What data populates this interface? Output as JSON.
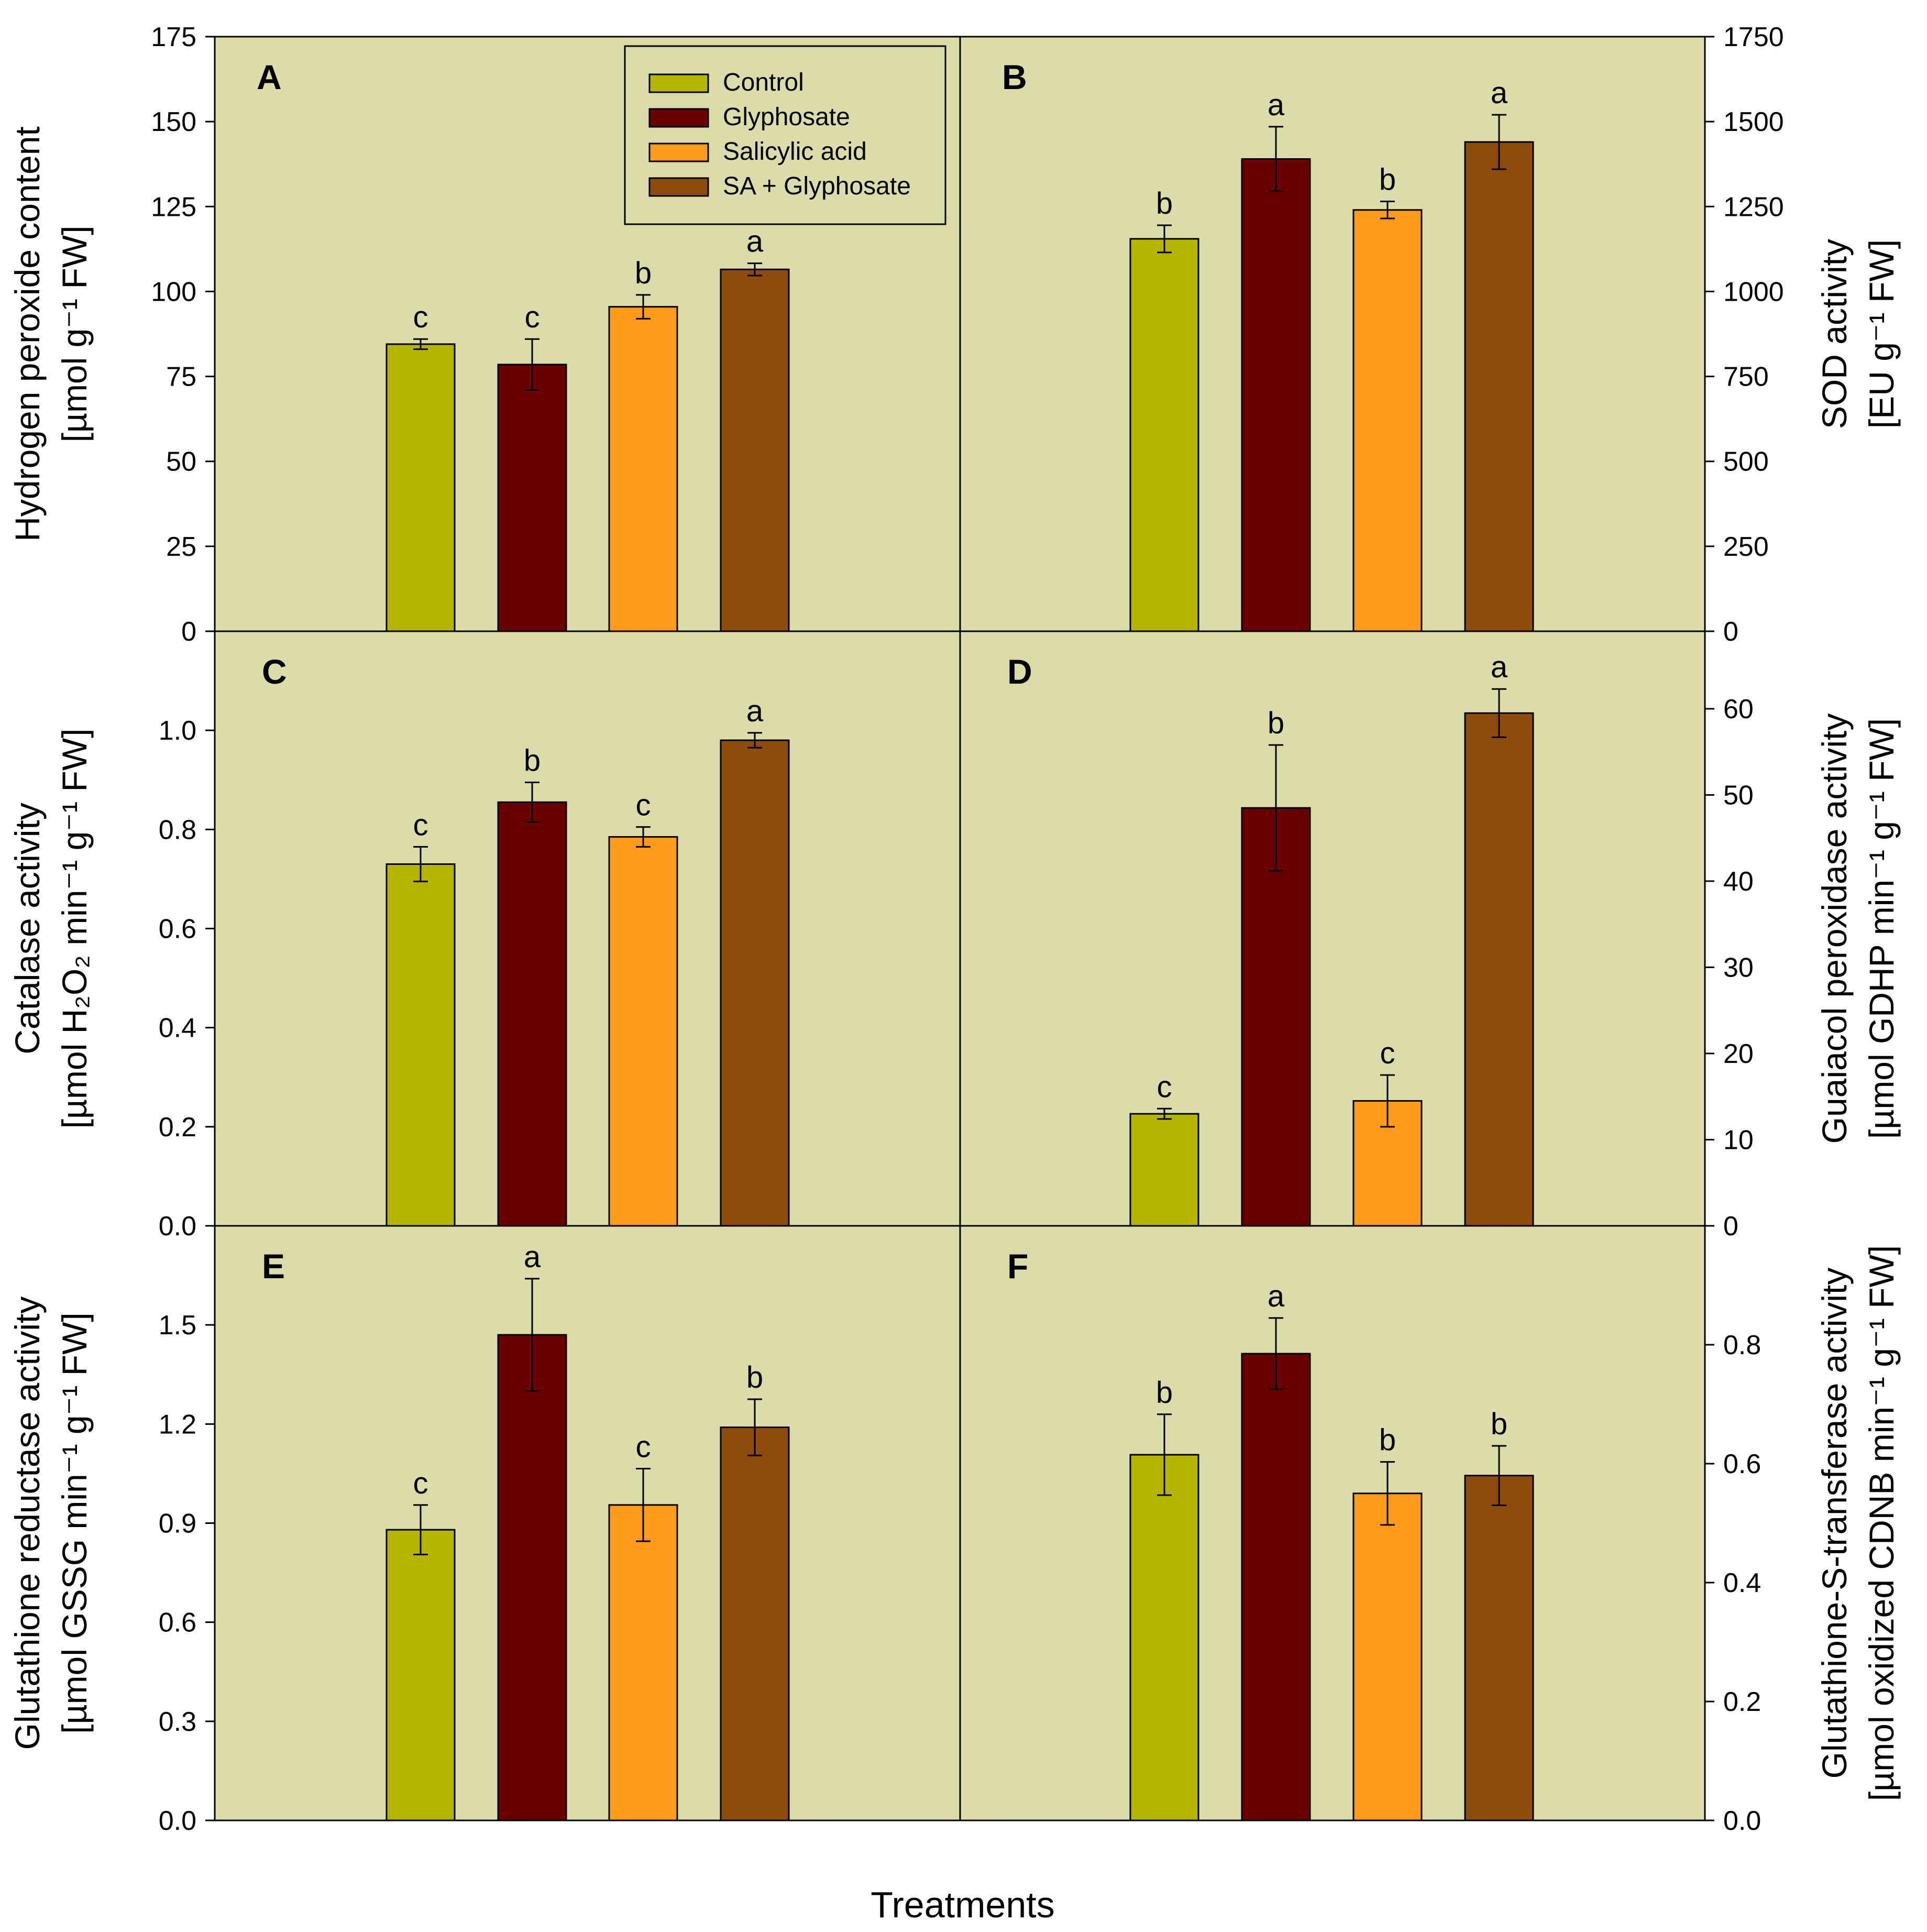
{
  "figure": {
    "x_axis_title": "Treatments",
    "colors": {
      "plot_bg": "#dcdcaa",
      "control": "#b5b500",
      "glyphosate": "#6b0000",
      "salicylic_acid": "#ff9a1a",
      "sa_glyphosate": "#8f4a0e"
    }
  },
  "legend": {
    "items": [
      {
        "label": "Control",
        "color": "#b5b500"
      },
      {
        "label": "Glyphosate",
        "color": "#6b0000"
      },
      {
        "label": "Salicylic acid",
        "color": "#ff9a1a"
      },
      {
        "label": "SA + Glyphosate",
        "color": "#8f4a0e"
      }
    ]
  },
  "chart_data": [
    {
      "panel": "A",
      "type": "bar",
      "categories": [
        "Control",
        "Glyphosate",
        "Salicylic acid",
        "SA + Glyphosate"
      ],
      "values": [
        84.5,
        78.5,
        95.5,
        106.5
      ],
      "errors": [
        1.5,
        7.5,
        3.5,
        1.8
      ],
      "significance": [
        "c",
        "c",
        "b",
        "a"
      ],
      "ylim": [
        0,
        175
      ],
      "yticks": [
        0,
        25,
        50,
        75,
        100,
        125,
        150,
        175
      ],
      "ytick_labels": [
        "0",
        "25",
        "50",
        "75",
        "100",
        "125",
        "150",
        "175"
      ],
      "ylabel_line1": "Hydrogen peroxide content",
      "ylabel_line2": "[µmol g⁻¹ FW]",
      "axis_side": "left"
    },
    {
      "panel": "B",
      "type": "bar",
      "categories": [
        "Control",
        "Glyphosate",
        "Salicylic acid",
        "SA + Glyphosate"
      ],
      "values": [
        1155,
        1390,
        1240,
        1440
      ],
      "errors": [
        40,
        95,
        25,
        80
      ],
      "significance": [
        "b",
        "a",
        "b",
        "a"
      ],
      "ylim": [
        0,
        1750
      ],
      "yticks": [
        0,
        250,
        500,
        750,
        1000,
        1250,
        1500,
        1750
      ],
      "ytick_labels": [
        "0",
        "250",
        "500",
        "750",
        "1000",
        "1250",
        "1500",
        "1750"
      ],
      "ylabel_line1": "SOD activity",
      "ylabel_line2": "[EU g⁻¹ FW]",
      "axis_side": "right"
    },
    {
      "panel": "C",
      "type": "bar",
      "categories": [
        "Control",
        "Glyphosate",
        "Salicylic acid",
        "SA + Glyphosate"
      ],
      "values": [
        0.73,
        0.855,
        0.785,
        0.98
      ],
      "errors": [
        0.035,
        0.04,
        0.02,
        0.015
      ],
      "significance": [
        "c",
        "b",
        "c",
        "a"
      ],
      "ylim": [
        0,
        1.2
      ],
      "yticks": [
        0,
        0.2,
        0.4,
        0.6,
        0.8,
        1.0
      ],
      "ytick_labels": [
        "0.0",
        "0.2",
        "0.4",
        "0.6",
        "0.8",
        "1.0"
      ],
      "ylabel_line1": "Catalase activity",
      "ylabel_line2": "[µmol H₂O₂ min⁻¹ g⁻¹ FW]",
      "axis_side": "left"
    },
    {
      "panel": "D",
      "type": "bar",
      "categories": [
        "Control",
        "Glyphosate",
        "Salicylic acid",
        "SA + Glyphosate"
      ],
      "values": [
        13,
        48.5,
        14.5,
        59.5
      ],
      "errors": [
        0.6,
        7.3,
        3.0,
        2.8
      ],
      "significance": [
        "c",
        "b",
        "c",
        "a"
      ],
      "ylim": [
        0,
        69
      ],
      "yticks": [
        0,
        10,
        20,
        30,
        40,
        50,
        60
      ],
      "ytick_labels": [
        "0",
        "10",
        "20",
        "30",
        "40",
        "50",
        "60"
      ],
      "ylabel_line1": "Guaiacol peroxidase activity",
      "ylabel_line2": "[µmol GDHP min⁻¹ g⁻¹ FW]",
      "axis_side": "right"
    },
    {
      "panel": "E",
      "type": "bar",
      "categories": [
        "Control",
        "Glyphosate",
        "Salicylic acid",
        "SA + Glyphosate"
      ],
      "values": [
        0.88,
        1.47,
        0.955,
        1.19
      ],
      "errors": [
        0.075,
        0.17,
        0.11,
        0.085
      ],
      "significance": [
        "c",
        "a",
        "c",
        "b"
      ],
      "ylim": [
        0,
        1.8
      ],
      "yticks": [
        0,
        0.3,
        0.6,
        0.9,
        1.2,
        1.5
      ],
      "ytick_labels": [
        "0.0",
        "0.3",
        "0.6",
        "0.9",
        "1.2",
        "1.5"
      ],
      "ylabel_line1": "Glutathione reductase activity",
      "ylabel_line2": "[µmol GSSG min⁻¹ g⁻¹ FW]",
      "axis_side": "left"
    },
    {
      "panel": "F",
      "type": "bar",
      "categories": [
        "Control",
        "Glyphosate",
        "Salicylic acid",
        "SA + Glyphosate"
      ],
      "values": [
        0.615,
        0.785,
        0.55,
        0.58
      ],
      "errors": [
        0.068,
        0.06,
        0.053,
        0.05
      ],
      "significance": [
        "b",
        "a",
        "b",
        "b"
      ],
      "ylim": [
        0,
        1.0
      ],
      "yticks": [
        0,
        0.2,
        0.4,
        0.6,
        0.8
      ],
      "ytick_labels": [
        "0.0",
        "0.2",
        "0.4",
        "0.6",
        "0.8"
      ],
      "ylabel_line1": "Glutathione-S-transferase activity",
      "ylabel_line2": "[µmol oxidized CDNB min⁻¹ g⁻¹ FW]",
      "axis_side": "right"
    }
  ]
}
